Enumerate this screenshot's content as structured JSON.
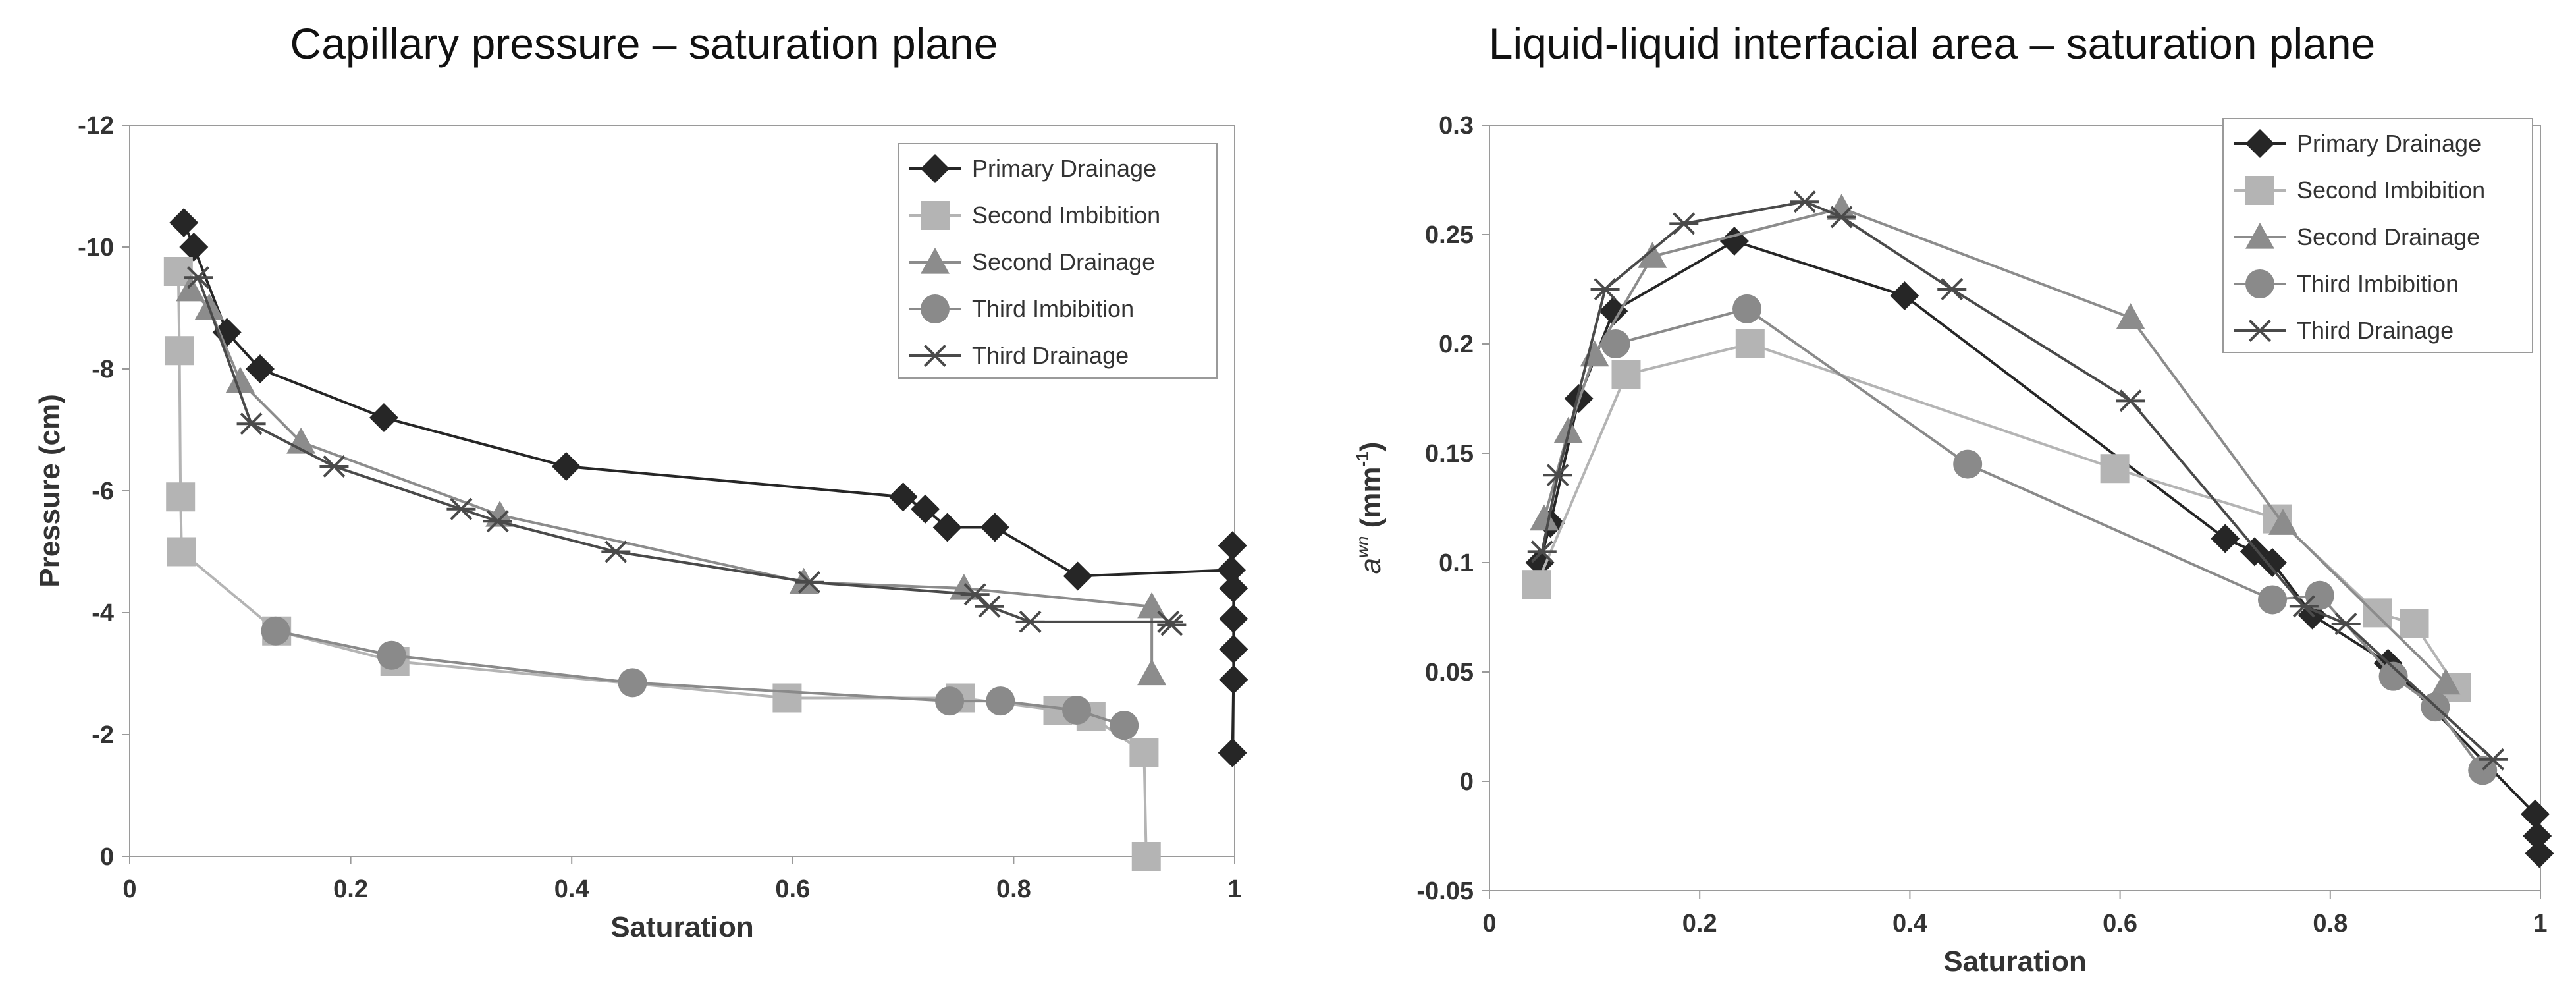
{
  "chart_data": [
    {
      "type": "line",
      "title": "Capillary pressure – saturation plane",
      "xlabel": "Saturation",
      "ylabel": "Pressure (cm)",
      "xlim": [
        0,
        1
      ],
      "ylim": [
        0,
        -12
      ],
      "y_inverted": true,
      "xticks": [
        "0",
        "0.2",
        "0.4",
        "0.6",
        "0.8",
        "1"
      ],
      "yticks": [
        "0",
        "-2",
        "-4",
        "-6",
        "-8",
        "-10",
        "-12"
      ],
      "grid": false,
      "legend": "top-right",
      "series": [
        {
          "name": "Primary Drainage",
          "marker": "diamond",
          "color": "#262626",
          "x": [
            0.049,
            0.058,
            0.088,
            0.118,
            0.23,
            0.395,
            0.7,
            0.72,
            0.74,
            0.783,
            0.858,
            0.997,
            0.998,
            0.999,
            0.999,
            0.999,
            0.999,
            0.998
          ],
          "y": [
            -10.4,
            -10.0,
            -8.6,
            -8.0,
            -7.2,
            -6.4,
            -5.9,
            -5.7,
            -5.4,
            -5.4,
            -4.6,
            -4.7,
            -5.1,
            -4.4,
            -3.9,
            -3.4,
            -2.9,
            -1.7
          ]
        },
        {
          "name": "Second Imbibition",
          "marker": "square",
          "color": "#b4b4b4",
          "x": [
            0.044,
            0.045,
            0.046,
            0.047,
            0.133,
            0.24,
            0.595,
            0.752,
            0.84,
            0.87,
            0.918,
            0.92
          ],
          "y": [
            -9.6,
            -8.3,
            -5.9,
            -5.0,
            -3.7,
            -3.2,
            -2.6,
            -2.6,
            -2.4,
            -2.3,
            -1.7,
            0.0
          ]
        },
        {
          "name": "Second Drainage",
          "marker": "triangle",
          "color": "#8c8c8c",
          "x": [
            0.055,
            0.072,
            0.1,
            0.155,
            0.335,
            0.61,
            0.755,
            0.925,
            0.925
          ],
          "y": [
            -9.3,
            -9.0,
            -7.8,
            -6.8,
            -5.6,
            -4.5,
            -4.4,
            -4.1,
            -3.0
          ]
        },
        {
          "name": "Third Imbibition",
          "marker": "circle",
          "color": "#8a8a8a",
          "x": [
            0.132,
            0.237,
            0.455,
            0.742,
            0.788,
            0.857,
            0.9
          ],
          "y": [
            -3.7,
            -3.3,
            -2.85,
            -2.55,
            -2.55,
            -2.4,
            -2.15
          ]
        },
        {
          "name": "Third Drainage",
          "marker": "asterisk",
          "color": "#4a4a4a",
          "x": [
            0.062,
            0.11,
            0.185,
            0.3,
            0.333,
            0.44,
            0.615,
            0.765,
            0.778,
            0.815,
            0.94,
            0.943
          ],
          "y": [
            -9.5,
            -7.1,
            -6.4,
            -5.7,
            -5.5,
            -5.0,
            -4.5,
            -4.3,
            -4.1,
            -3.85,
            -3.85,
            -3.8
          ]
        }
      ]
    },
    {
      "type": "line",
      "title": "Liquid-liquid interfacial area  – saturation plane",
      "xlabel": "Saturation",
      "ylabel_main": "a",
      "ylabel_sup": "wn",
      "ylabel_unit": "(mm",
      "ylabel_unit_sup": "-1",
      "ylabel_close": ")",
      "xlim": [
        0,
        1
      ],
      "ylim": [
        -0.05,
        0.3
      ],
      "xticks": [
        "0",
        "0.2",
        "0.4",
        "0.6",
        "0.8",
        "1"
      ],
      "yticks": [
        "-0.05",
        "0",
        "0.05",
        "0.1",
        "0.15",
        "0.2",
        "0.25",
        "0.3"
      ],
      "grid": false,
      "legend": "top-right",
      "series": [
        {
          "name": "Primary Drainage",
          "marker": "diamond",
          "color": "#262626",
          "x": [
            0.048,
            0.058,
            0.085,
            0.118,
            0.233,
            0.395,
            0.7,
            0.728,
            0.745,
            0.783,
            0.855,
            0.995,
            0.997,
            0.999
          ],
          "y": [
            0.1,
            0.118,
            0.175,
            0.215,
            0.247,
            0.222,
            0.111,
            0.105,
            0.1,
            0.076,
            0.054,
            -0.015,
            -0.025,
            -0.033
          ]
        },
        {
          "name": "Second Imbibition",
          "marker": "square",
          "color": "#b4b4b4",
          "x": [
            0.045,
            0.13,
            0.248,
            0.595,
            0.75,
            0.845,
            0.88,
            0.92
          ],
          "y": [
            0.09,
            0.186,
            0.2,
            0.143,
            0.12,
            0.077,
            0.072,
            0.043
          ]
        },
        {
          "name": "Second Drainage",
          "marker": "triangle",
          "color": "#8c8c8c",
          "x": [
            0.052,
            0.075,
            0.1,
            0.155,
            0.335,
            0.61,
            0.755,
            0.91
          ],
          "y": [
            0.12,
            0.16,
            0.195,
            0.24,
            0.262,
            0.212,
            0.118,
            0.045
          ]
        },
        {
          "name": "Third Imbibition",
          "marker": "circle",
          "color": "#8a8a8a",
          "x": [
            0.12,
            0.245,
            0.455,
            0.745,
            0.79,
            0.86,
            0.9,
            0.945
          ],
          "y": [
            0.2,
            0.216,
            0.145,
            0.083,
            0.085,
            0.048,
            0.034,
            0.005
          ]
        },
        {
          "name": "Third Drainage",
          "marker": "asterisk",
          "color": "#4a4a4a",
          "x": [
            0.05,
            0.065,
            0.11,
            0.185,
            0.3,
            0.335,
            0.44,
            0.61,
            0.775,
            0.815,
            0.955
          ],
          "y": [
            0.105,
            0.14,
            0.225,
            0.255,
            0.265,
            0.258,
            0.225,
            0.174,
            0.08,
            0.072,
            0.01
          ]
        }
      ]
    }
  ]
}
